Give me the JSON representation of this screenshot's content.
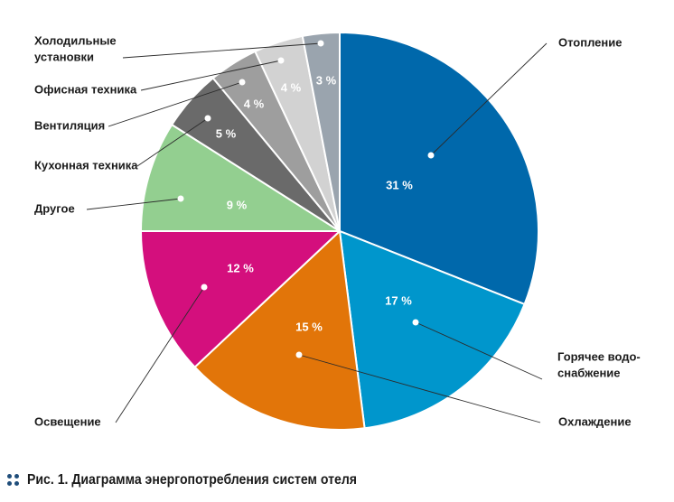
{
  "chart_data": {
    "type": "pie",
    "start_angle_deg": 0,
    "direction": "clockwise",
    "slices": [
      {
        "label": "Отопление",
        "value": 31,
        "value_label": "31 %",
        "color": "#0068ab",
        "label_lines": [
          "Отопление"
        ]
      },
      {
        "label": "Горячее водоснабжение",
        "value": 17,
        "value_label": "17 %",
        "color": "#0096cc",
        "label_lines": [
          "Горячее водо-",
          "снабжение"
        ]
      },
      {
        "label": "Охлаждение",
        "value": 15,
        "value_label": "15 %",
        "color": "#e27509",
        "label_lines": [
          "Охлаждение"
        ]
      },
      {
        "label": "Освещение",
        "value": 12,
        "value_label": "12 %",
        "color": "#d40f7d",
        "label_lines": [
          "Освещение"
        ]
      },
      {
        "label": "Другое",
        "value": 9,
        "value_label": "9 %",
        "color": "#93cf90",
        "label_lines": [
          "Другое"
        ]
      },
      {
        "label": "Кухонная техника",
        "value": 5,
        "value_label": "5 %",
        "color": "#6a6a6a",
        "label_lines": [
          "Кухонная техника"
        ]
      },
      {
        "label": "Вентиляция",
        "value": 4,
        "value_label": "4 %",
        "color": "#9e9e9e",
        "label_lines": [
          "Вентиляция"
        ]
      },
      {
        "label": "Офисная техника",
        "value": 4,
        "value_label": "4 %",
        "color": "#d2d2d2",
        "label_lines": [
          "Офисная техника"
        ]
      },
      {
        "label": "Холодильные установки",
        "value": 3,
        "value_label": "3 %",
        "color": "#9aa4ae",
        "label_lines": [
          "Холодильные",
          "установки"
        ]
      }
    ]
  },
  "caption": {
    "text": "Рис. 1. Диаграмма энергопотребления систем отеля",
    "icon": "dots-icon",
    "icon_color": "#1f4d7a"
  }
}
